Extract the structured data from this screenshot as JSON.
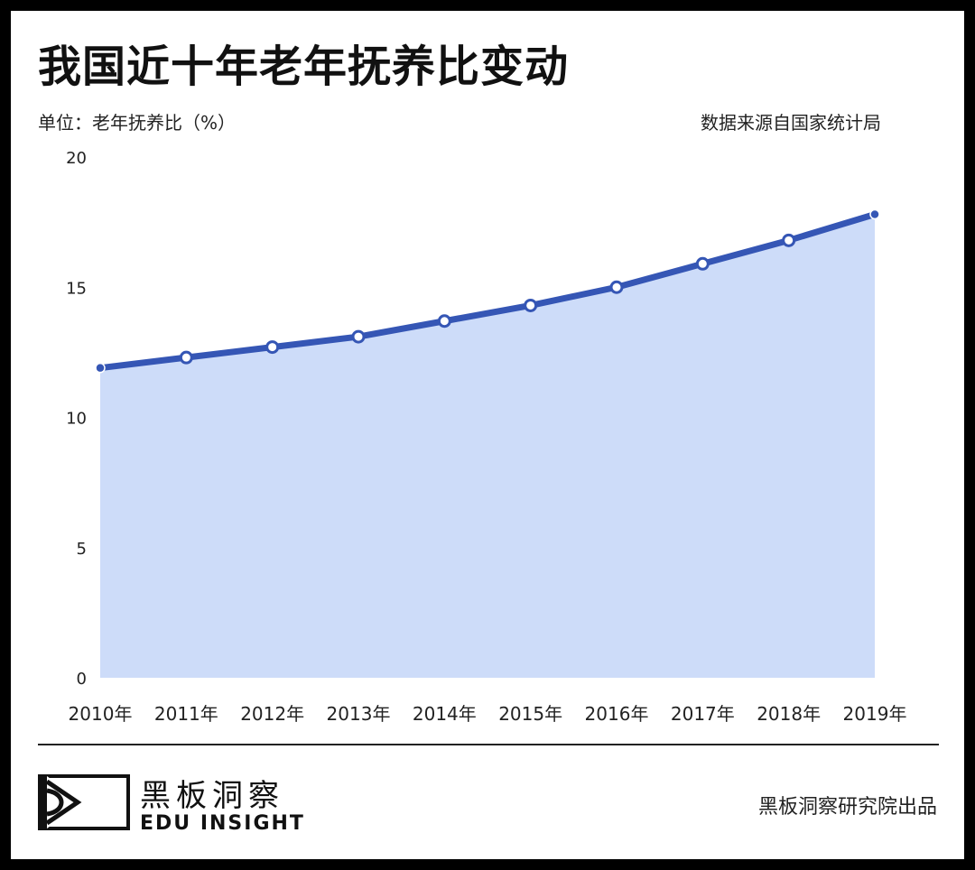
{
  "header": {
    "title": "我国近十年老年抚养比变动",
    "unit": "单位：老年抚养比（%）",
    "source": "数据来源自国家统计局"
  },
  "chart_data": {
    "type": "area",
    "title": "我国近十年老年抚养比变动",
    "xlabel": "",
    "ylabel": "",
    "categories": [
      "2010年",
      "2011年",
      "2012年",
      "2013年",
      "2014年",
      "2015年",
      "2016年",
      "2017年",
      "2018年",
      "2019年"
    ],
    "values": [
      11.9,
      12.3,
      12.7,
      13.1,
      13.7,
      14.3,
      15.0,
      15.9,
      16.8,
      17.8
    ],
    "yticks": [
      0,
      5,
      10,
      15,
      20
    ],
    "ylim": [
      0,
      20
    ],
    "grid": false,
    "legend": "none",
    "colors": {
      "line": "#3556b5",
      "fill": "#cddcf9",
      "marker_fill": "#ffffff"
    }
  },
  "footer": {
    "brand_cn": "黑板洞察",
    "brand_en": "EDU INSIGHT",
    "credit": "黑板洞察研究院出品",
    "logo_icon": "edu-insight-logo-icon"
  }
}
